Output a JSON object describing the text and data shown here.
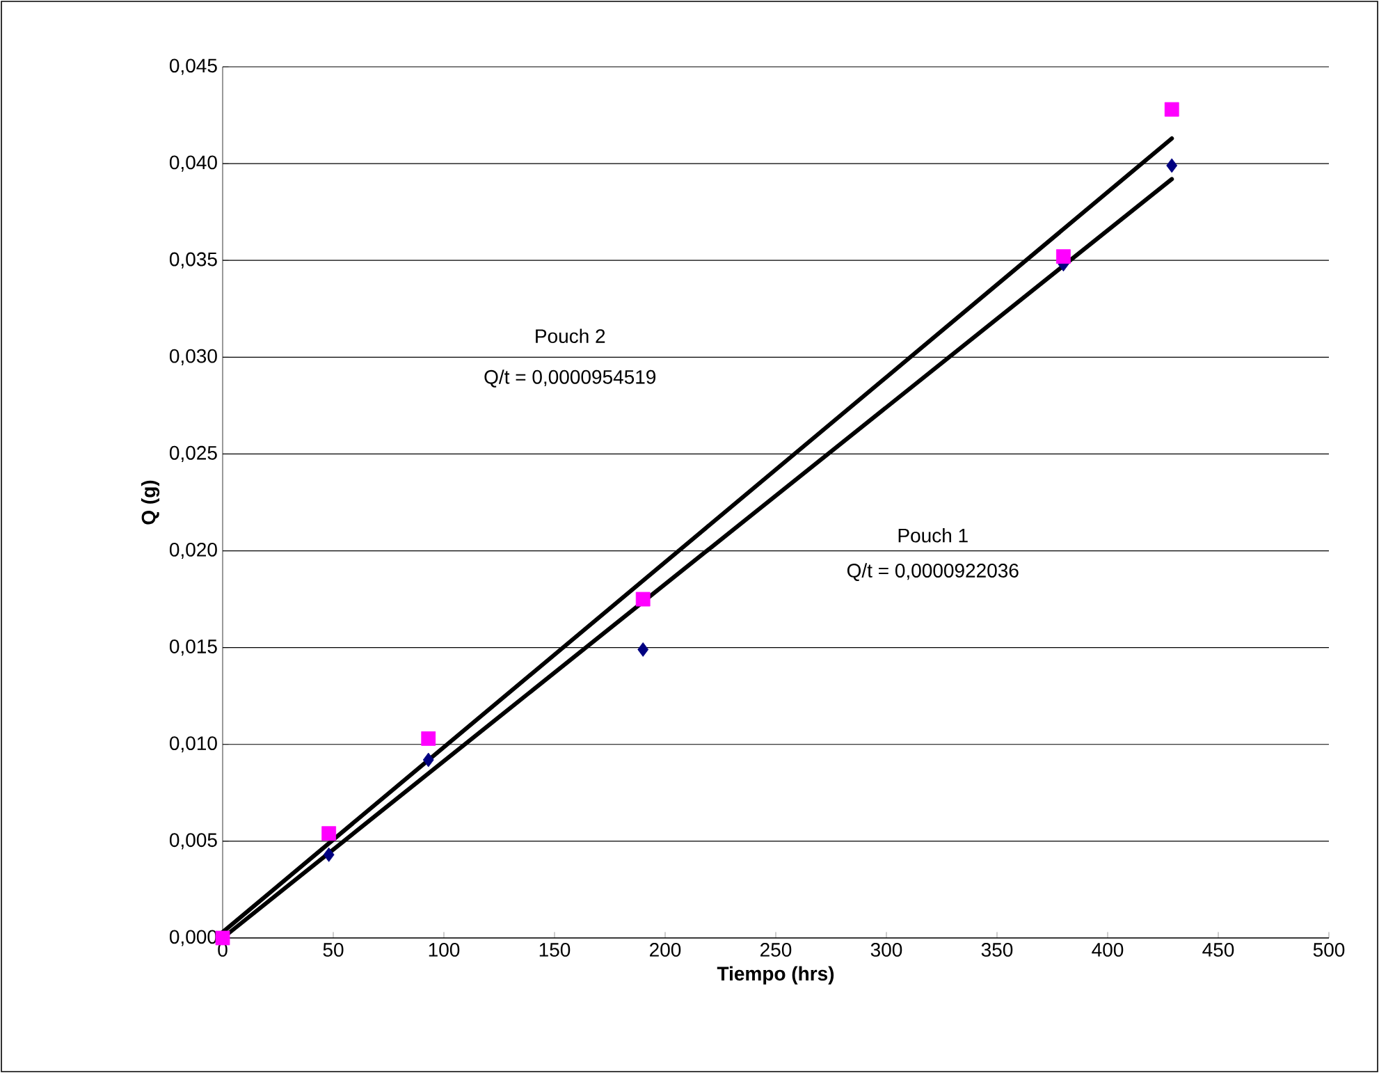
{
  "chart_data": {
    "type": "scatter",
    "xlabel": "Tiempo (hrs)",
    "ylabel": "Q (g)",
    "xlim": [
      0,
      500
    ],
    "xticks": [
      0,
      50,
      100,
      150,
      200,
      250,
      300,
      350,
      400,
      450,
      500
    ],
    "ylim": [
      0,
      0.045
    ],
    "yticks": [
      {
        "value": 0,
        "label": "0,000"
      },
      {
        "value": 0.005,
        "label": "0,005"
      },
      {
        "value": 0.01,
        "label": "0,010"
      },
      {
        "value": 0.015,
        "label": "0,015"
      },
      {
        "value": 0.02,
        "label": "0,020"
      },
      {
        "value": 0.025,
        "label": "0,025"
      },
      {
        "value": 0.03,
        "label": "0,030"
      },
      {
        "value": 0.035,
        "label": "0,035"
      },
      {
        "value": 0.04,
        "label": "0,040"
      },
      {
        "value": 0.045,
        "label": "0,045"
      }
    ],
    "grid": "y",
    "series": [
      {
        "marker": "diamond",
        "color": "#000080",
        "x": [
          48,
          93,
          190,
          380,
          429
        ],
        "values": [
          0.0043,
          0.0092,
          0.0149,
          0.0348,
          0.0399
        ]
      },
      {
        "marker": "square",
        "color": "#ff00ff",
        "x": [
          0,
          48,
          93,
          190,
          380,
          429
        ],
        "values": [
          0,
          0.0054,
          0.0103,
          0.0175,
          0.0352,
          0.0428
        ]
      },
      {
        "type": "line",
        "marker": "none",
        "color": "#000000",
        "x": [
          0,
          429
        ],
        "values": [
          0,
          0.0392
        ]
      },
      {
        "type": "line",
        "marker": "none",
        "color": "#000000",
        "x": [
          0,
          429
        ],
        "values": [
          0.0003,
          0.0413
        ]
      }
    ],
    "annotations": [
      "Pouch 2",
      "Q/t = 0,0000954519",
      "Pouch 1",
      "Q/t = 0,0000922036"
    ]
  }
}
